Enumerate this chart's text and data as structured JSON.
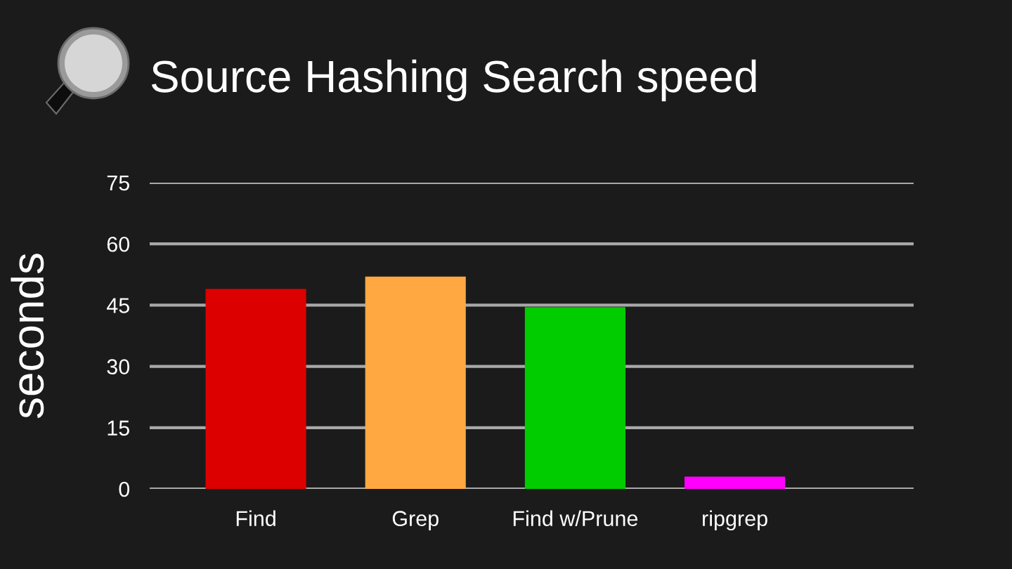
{
  "chart_data": {
    "type": "bar",
    "title": "Source Hashing Search speed",
    "ylabel": "seconds",
    "categories": [
      "Find",
      "Grep",
      "Find w/Prune",
      "ripgrep"
    ],
    "values": [
      49,
      52,
      44.5,
      3
    ],
    "colors": [
      "#dd0000",
      "#ffa842",
      "#00cc00",
      "#ff00ff"
    ],
    "ylim": [
      0,
      75
    ],
    "yticks": [
      0,
      15,
      30,
      45,
      60,
      75
    ],
    "grid": "y"
  }
}
